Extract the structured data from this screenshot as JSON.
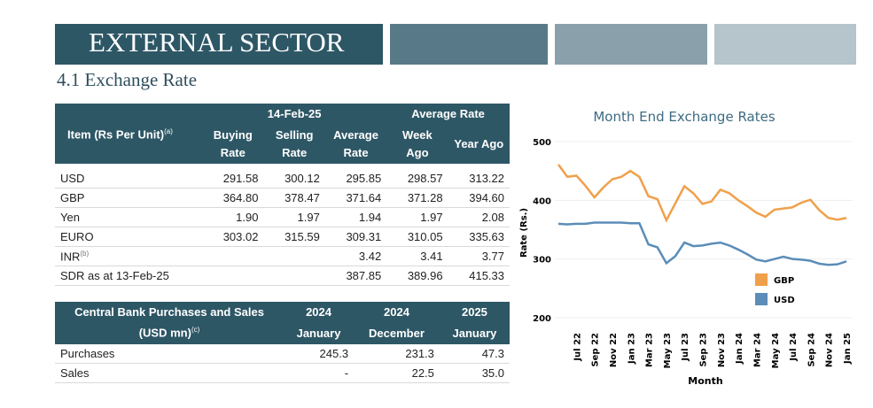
{
  "header": {
    "title": "EXTERNAL SECTOR",
    "subtitle": "4.1 Exchange Rate"
  },
  "exchange_table": {
    "item_header": "Item (Rs Per Unit)",
    "item_note": "(a)",
    "date_header": "14-Feb-25",
    "average_header": "Average Rate",
    "columns": [
      "Buying Rate",
      "Selling Rate",
      "Average Rate",
      "Week Ago",
      "Year Ago"
    ],
    "rows": [
      {
        "label": "USD",
        "values": [
          "291.58",
          "300.12",
          "295.85",
          "298.57",
          "313.22"
        ]
      },
      {
        "label": "GBP",
        "values": [
          "364.80",
          "378.47",
          "371.64",
          "371.28",
          "394.60"
        ]
      },
      {
        "label": "Yen",
        "values": [
          "1.90",
          "1.97",
          "1.94",
          "1.97",
          "2.08"
        ]
      },
      {
        "label": "EURO",
        "values": [
          "303.02",
          "315.59",
          "309.31",
          "310.05",
          "335.63"
        ]
      },
      {
        "label": "INR",
        "note": "(b)",
        "values": [
          null,
          null,
          "3.42",
          "3.41",
          "3.77"
        ]
      },
      {
        "label": "SDR as at 13-Feb-25",
        "values": [
          null,
          null,
          "387.85",
          "389.96",
          "415.33"
        ]
      }
    ]
  },
  "purchase_table": {
    "title": "Central Bank Purchases and Sales",
    "unit": "(USD mn)",
    "note": "(c)",
    "columns": [
      {
        "year": "2024",
        "month": "January"
      },
      {
        "year": "2024",
        "month": "December"
      },
      {
        "year": "2025",
        "month": "January"
      }
    ],
    "rows": [
      {
        "label": "Purchases",
        "values": [
          "245.3",
          "231.3",
          "47.3"
        ]
      },
      {
        "label": "Sales",
        "values": [
          "-",
          "22.5",
          "35.0"
        ]
      }
    ]
  },
  "chart_data": {
    "type": "line",
    "title": "Month End Exchange Rates",
    "x_label": "Month",
    "y_label": "Rate (Rs.)",
    "categories": [
      null,
      null,
      "Jul 22",
      null,
      "Sep 22",
      null,
      "Nov 22",
      null,
      "Jan 23",
      null,
      "Mar 23",
      null,
      "May 23",
      null,
      "Jul 23",
      null,
      "Sep 23",
      null,
      "Nov 23",
      null,
      "Jan 24",
      null,
      "Mar 24",
      null,
      "May 24",
      null,
      "Jul 24",
      null,
      "Sep 24",
      null,
      "Nov 24",
      null,
      "Jan 25"
    ],
    "ylim": [
      200,
      500
    ],
    "yticks": [
      200,
      300,
      400,
      500
    ],
    "grid": true,
    "legend": "lower right",
    "series": [
      {
        "name": "GBP",
        "color": "#f0a04b",
        "values": [
          461,
          440,
          442,
          425,
          405,
          422,
          436,
          440,
          450,
          440,
          407,
          402,
          366,
          395,
          424,
          412,
          394,
          398,
          418,
          412,
          400,
          390,
          379,
          372,
          384,
          386,
          388,
          396,
          401,
          383,
          370,
          367,
          370
        ]
      },
      {
        "name": "USD",
        "color": "#5b8db8",
        "values": [
          360,
          359,
          360,
          360,
          362,
          362,
          362,
          362,
          361,
          361,
          325,
          320,
          293,
          305,
          328,
          322,
          323,
          326,
          328,
          323,
          316,
          308,
          299,
          296,
          300,
          304,
          300,
          299,
          297,
          292,
          290,
          291,
          296
        ]
      }
    ]
  }
}
